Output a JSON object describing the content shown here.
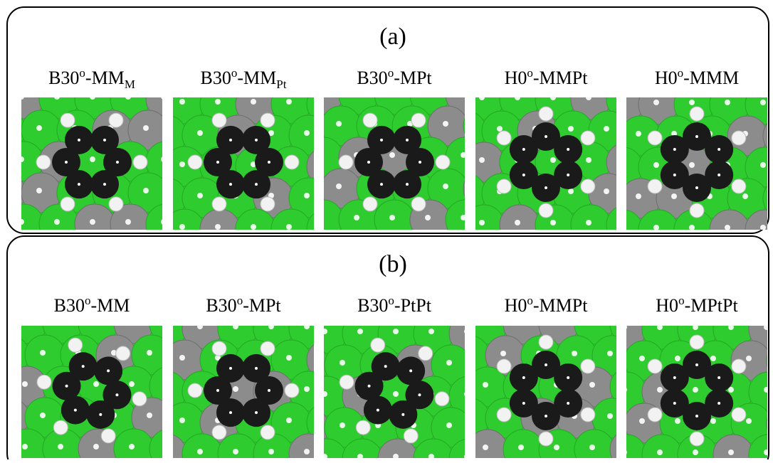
{
  "panels": [
    {
      "label": "(a)",
      "items": [
        {
          "main": "B30",
          "sup": "o",
          "rest": "-MM",
          "sub": "M"
        },
        {
          "main": "B30",
          "sup": "o",
          "rest": "-MM",
          "sub": "Pt"
        },
        {
          "main": "B30",
          "sup": "o",
          "rest": "-MPt"
        },
        {
          "main": "H0",
          "sup": "o",
          "rest": "-MMPt"
        },
        {
          "main": "H0",
          "sup": "o",
          "rest": "-MMM"
        }
      ]
    },
    {
      "label": "(b)",
      "items": [
        {
          "main": "B30",
          "sup": "o",
          "rest": "-MM"
        },
        {
          "main": "B30",
          "sup": "o",
          "rest": "-MPt"
        },
        {
          "main": "B30",
          "sup": "o",
          "rest": "-PtPt"
        },
        {
          "main": "H0",
          "sup": "o",
          "rest": "-MMPt"
        },
        {
          "main": "H0",
          "sup": "o",
          "rest": "-MPtPt"
        }
      ]
    }
  ]
}
